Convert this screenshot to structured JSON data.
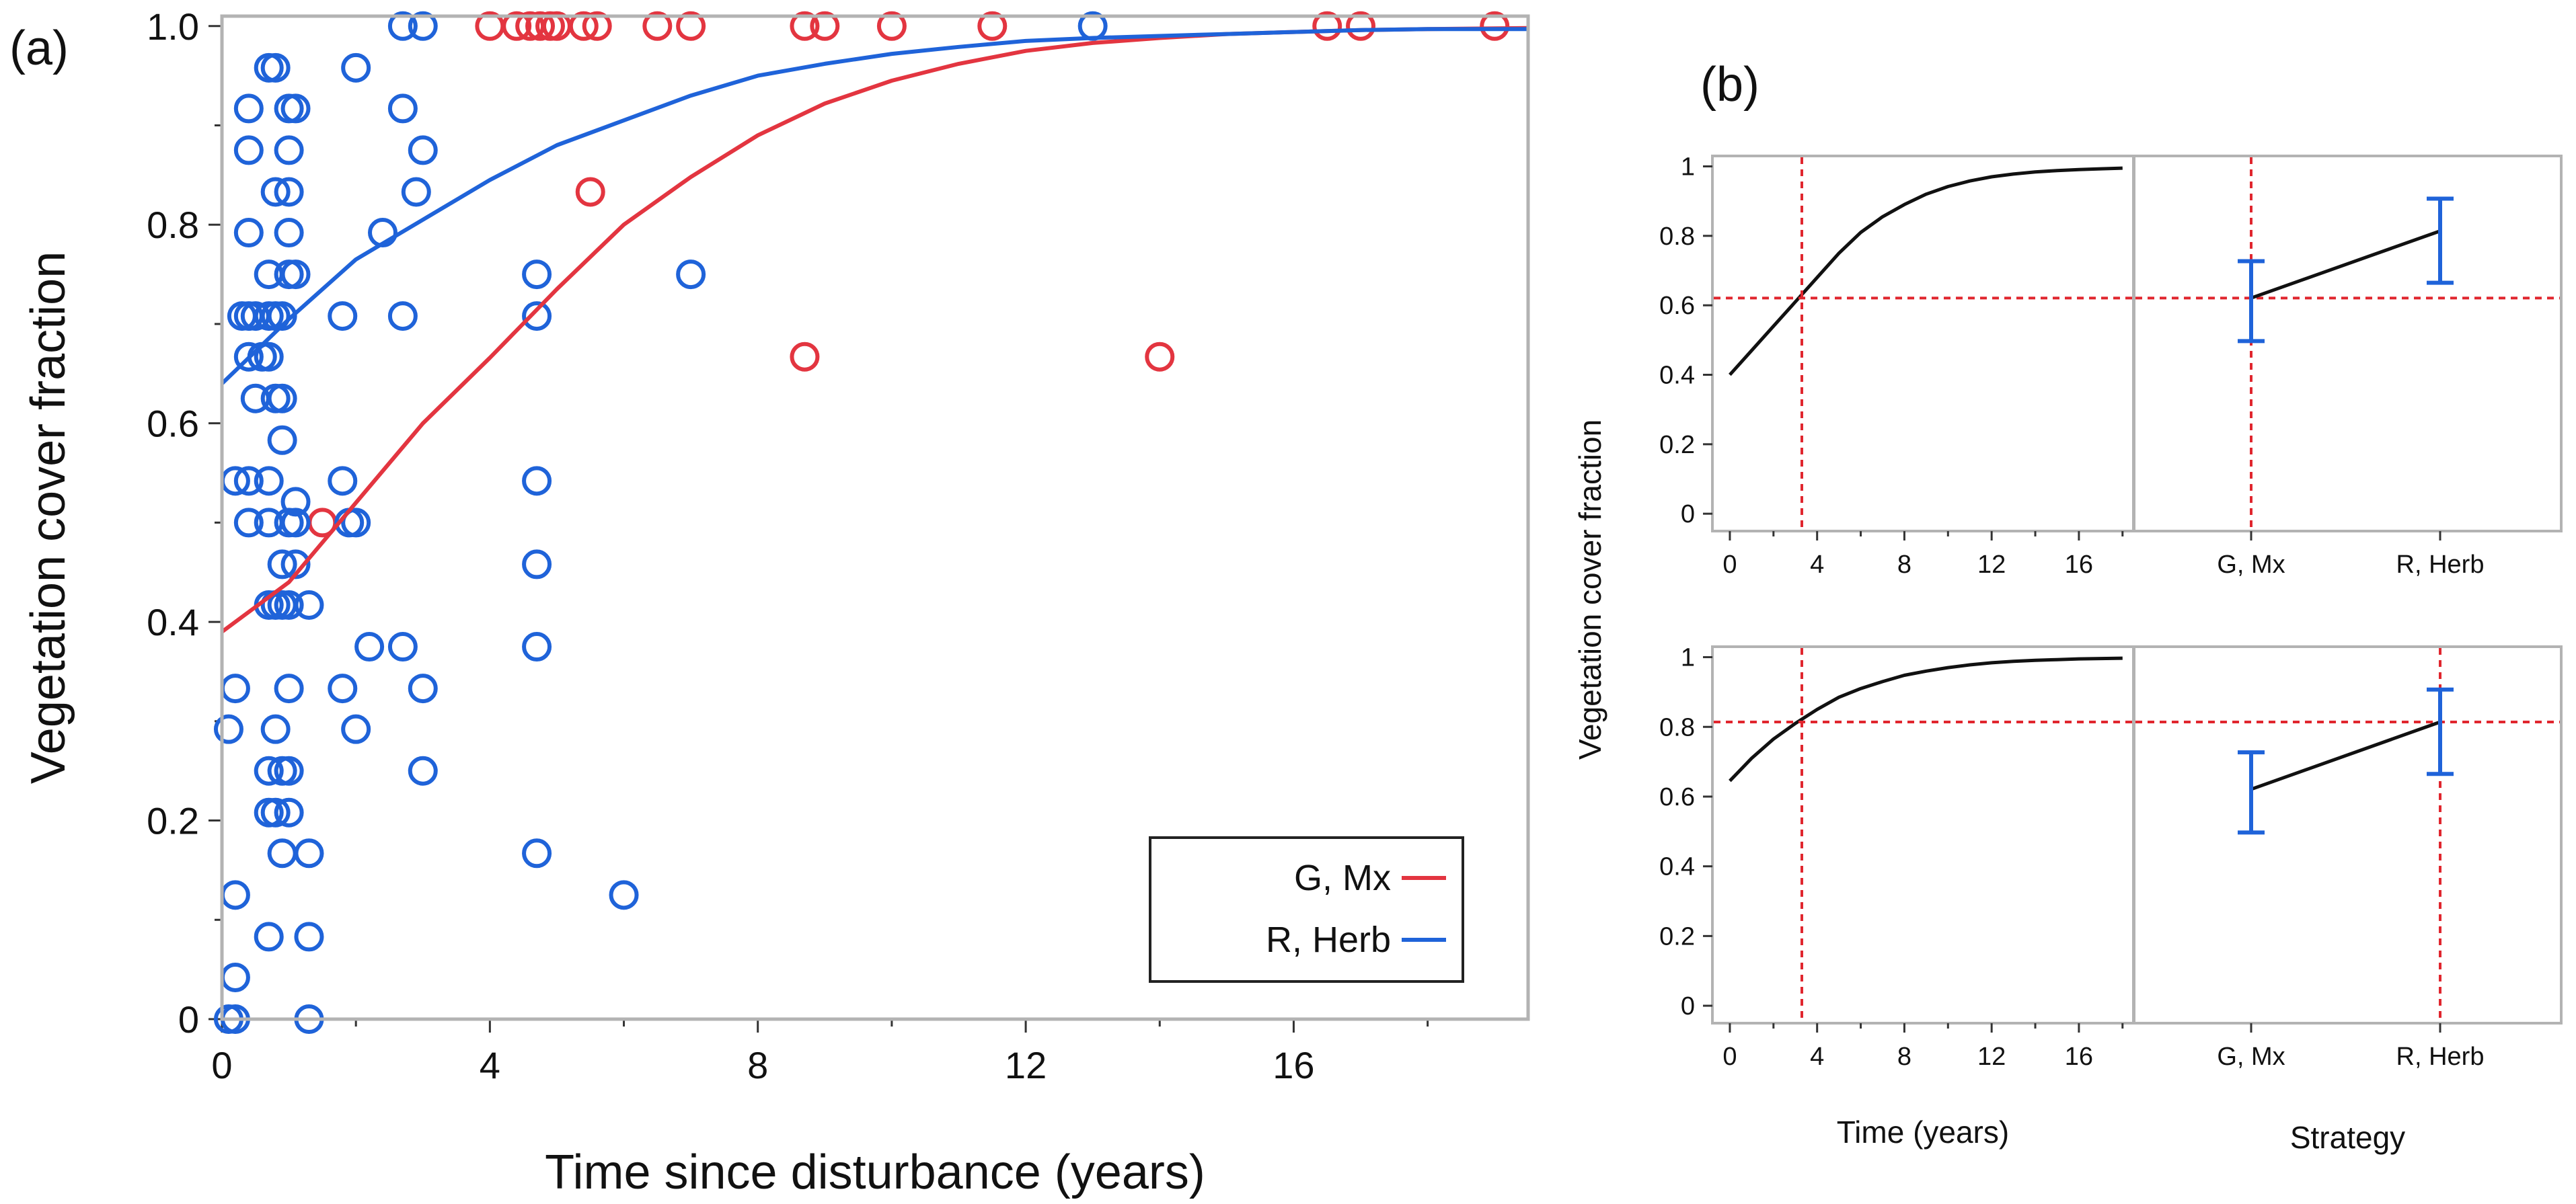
{
  "figure": {
    "panel_a_label": "(a)",
    "panel_b_label": "(b)",
    "colors": {
      "G, Mx": "#e33540",
      "R, Herb": "#1f63d9",
      "profile_line": "#111111",
      "crosshair": "#e0262e",
      "error_bar": "#1f63d9",
      "frame": "#b3b3b3"
    }
  },
  "chart_data": [
    {
      "id": "panel-a",
      "type": "scatter",
      "title": "",
      "xlabel": "Time since disturbance (years)",
      "ylabel": "Vegetation cover fraction",
      "xlim": [
        0,
        19.5
      ],
      "ylim": [
        0,
        1.01
      ],
      "xticks": [
        0,
        4,
        8,
        12,
        16
      ],
      "yticks": [
        0,
        0.2,
        0.4,
        0.6,
        0.8,
        1.0
      ],
      "xtick_labels": [
        "0",
        "4",
        "8",
        "12",
        "16"
      ],
      "ytick_labels": [
        "0",
        "0.2",
        "0.4",
        "0.6",
        "0.8",
        "1.0"
      ],
      "legend": {
        "position": "bottom-right",
        "entries": [
          "G, Mx",
          "R, Herb"
        ]
      },
      "series": [
        {
          "name": "G, Mx",
          "marker": "open-circle",
          "points": [
            [
              4.0,
              1.0
            ],
            [
              4.4,
              1.0
            ],
            [
              4.6,
              1.0
            ],
            [
              4.75,
              1.0
            ],
            [
              4.9,
              1.0
            ],
            [
              5.0,
              1.0
            ],
            [
              5.4,
              1.0
            ],
            [
              5.6,
              1.0
            ],
            [
              6.5,
              1.0
            ],
            [
              7.0,
              1.0
            ],
            [
              8.7,
              1.0
            ],
            [
              9.0,
              1.0
            ],
            [
              10.0,
              1.0
            ],
            [
              11.5,
              1.0
            ],
            [
              16.5,
              1.0
            ],
            [
              17.0,
              1.0
            ],
            [
              19.0,
              1.0
            ],
            [
              5.5,
              0.833
            ],
            [
              8.7,
              0.667
            ],
            [
              14.0,
              0.667
            ],
            [
              1.5,
              0.5
            ]
          ],
          "fit": [
            [
              0,
              0.39
            ],
            [
              1,
              0.44
            ],
            [
              2,
              0.52
            ],
            [
              3,
              0.6
            ],
            [
              4,
              0.666
            ],
            [
              5,
              0.735
            ],
            [
              6,
              0.8
            ],
            [
              7,
              0.848
            ],
            [
              8,
              0.89
            ],
            [
              9,
              0.922
            ],
            [
              10,
              0.945
            ],
            [
              11,
              0.962
            ],
            [
              12,
              0.975
            ],
            [
              13,
              0.983
            ],
            [
              14,
              0.988
            ],
            [
              15,
              0.992
            ],
            [
              16,
              0.994
            ],
            [
              17,
              0.996
            ],
            [
              18,
              0.997
            ],
            [
              19.5,
              0.998
            ]
          ]
        },
        {
          "name": "R, Herb",
          "marker": "open-circle",
          "points": [
            [
              2.7,
              1.0
            ],
            [
              3.0,
              1.0
            ],
            [
              13.0,
              1.0
            ],
            [
              0.7,
              0.958
            ],
            [
              0.8,
              0.958
            ],
            [
              2.0,
              0.958
            ],
            [
              0.4,
              0.917
            ],
            [
              1.0,
              0.917
            ],
            [
              1.1,
              0.917
            ],
            [
              2.7,
              0.917
            ],
            [
              0.4,
              0.875
            ],
            [
              1.0,
              0.875
            ],
            [
              3.0,
              0.875
            ],
            [
              0.8,
              0.833
            ],
            [
              1.0,
              0.833
            ],
            [
              2.9,
              0.833
            ],
            [
              0.4,
              0.792
            ],
            [
              1.0,
              0.792
            ],
            [
              2.4,
              0.792
            ],
            [
              0.7,
              0.75
            ],
            [
              1.0,
              0.75
            ],
            [
              1.1,
              0.75
            ],
            [
              4.7,
              0.75
            ],
            [
              7.0,
              0.75
            ],
            [
              0.3,
              0.708
            ],
            [
              0.4,
              0.708
            ],
            [
              0.5,
              0.708
            ],
            [
              0.7,
              0.708
            ],
            [
              0.8,
              0.708
            ],
            [
              0.9,
              0.708
            ],
            [
              1.8,
              0.708
            ],
            [
              2.7,
              0.708
            ],
            [
              4.7,
              0.708
            ],
            [
              0.4,
              0.667
            ],
            [
              0.6,
              0.667
            ],
            [
              0.7,
              0.667
            ],
            [
              0.5,
              0.625
            ],
            [
              0.8,
              0.625
            ],
            [
              0.9,
              0.625
            ],
            [
              0.9,
              0.583
            ],
            [
              0.2,
              0.542
            ],
            [
              0.4,
              0.542
            ],
            [
              0.7,
              0.542
            ],
            [
              1.8,
              0.542
            ],
            [
              4.7,
              0.542
            ],
            [
              1.1,
              0.521
            ],
            [
              0.4,
              0.5
            ],
            [
              0.7,
              0.5
            ],
            [
              1.0,
              0.5
            ],
            [
              1.1,
              0.5
            ],
            [
              1.9,
              0.5
            ],
            [
              2.0,
              0.5
            ],
            [
              1.1,
              0.458
            ],
            [
              0.9,
              0.458
            ],
            [
              0.7,
              0.417
            ],
            [
              0.8,
              0.417
            ],
            [
              0.9,
              0.417
            ],
            [
              1.0,
              0.417
            ],
            [
              1.3,
              0.417
            ],
            [
              4.7,
              0.458
            ],
            [
              2.2,
              0.375
            ],
            [
              2.7,
              0.375
            ],
            [
              4.7,
              0.375
            ],
            [
              0.2,
              0.333
            ],
            [
              1.0,
              0.333
            ],
            [
              1.8,
              0.333
            ],
            [
              3.0,
              0.333
            ],
            [
              0.1,
              0.292
            ],
            [
              0.8,
              0.292
            ],
            [
              2.0,
              0.292
            ],
            [
              0.7,
              0.25
            ],
            [
              0.9,
              0.25
            ],
            [
              1.0,
              0.25
            ],
            [
              3.0,
              0.25
            ],
            [
              0.7,
              0.208
            ],
            [
              0.8,
              0.208
            ],
            [
              1.0,
              0.208
            ],
            [
              0.9,
              0.167
            ],
            [
              1.3,
              0.167
            ],
            [
              4.7,
              0.167
            ],
            [
              0.2,
              0.125
            ],
            [
              6.0,
              0.125
            ],
            [
              0.7,
              0.083
            ],
            [
              1.3,
              0.083
            ],
            [
              0.2,
              0.042
            ],
            [
              0.1,
              0.0
            ],
            [
              0.2,
              0.0
            ],
            [
              1.3,
              0.0
            ]
          ],
          "fit": [
            [
              0,
              0.64
            ],
            [
              1,
              0.705
            ],
            [
              2,
              0.765
            ],
            [
              3,
              0.805
            ],
            [
              4,
              0.845
            ],
            [
              5,
              0.88
            ],
            [
              6,
              0.905
            ],
            [
              7,
              0.93
            ],
            [
              8,
              0.95
            ],
            [
              9,
              0.962
            ],
            [
              10,
              0.972
            ],
            [
              11,
              0.979
            ],
            [
              12,
              0.985
            ],
            [
              13,
              0.988
            ],
            [
              14,
              0.99
            ],
            [
              15,
              0.992
            ],
            [
              16,
              0.994
            ],
            [
              17,
              0.996
            ],
            [
              18,
              0.997
            ],
            [
              19.5,
              0.997
            ]
          ]
        }
      ]
    },
    {
      "id": "panel-b-top-time",
      "type": "line",
      "title": "",
      "xlabel": "",
      "ylabel": "Vegetation cover fraction",
      "xlim": [
        -0.8,
        18.5
      ],
      "ylim": [
        -0.05,
        1.03
      ],
      "xticks": [
        0,
        4,
        8,
        12,
        16
      ],
      "yticks": [
        0,
        0.2,
        0.4,
        0.6,
        0.8,
        1
      ],
      "xtick_labels": [
        "0",
        "4",
        "8",
        "12",
        "16"
      ],
      "ytick_labels": [
        "0",
        "0.2",
        "0.4",
        "0.6",
        "0.8",
        "1"
      ],
      "x": [
        0,
        1,
        2,
        3,
        4,
        5,
        6,
        7,
        8,
        9,
        10,
        11,
        12,
        13,
        14,
        15,
        16,
        17,
        18
      ],
      "values": [
        0.4,
        0.47,
        0.54,
        0.61,
        0.68,
        0.75,
        0.81,
        0.855,
        0.89,
        0.92,
        0.942,
        0.958,
        0.97,
        0.978,
        0.984,
        0.988,
        0.991,
        0.993,
        0.995
      ],
      "crosshair": {
        "x": 3.3,
        "y": 0.621
      }
    },
    {
      "id": "panel-b-top-strategy",
      "type": "line",
      "title": "",
      "xlabel": "",
      "ylabel": "",
      "ylim": [
        -0.05,
        1.03
      ],
      "categories": [
        "G, Mx",
        "R, Herb"
      ],
      "values": [
        0.621,
        0.814
      ],
      "error_low": [
        0.497,
        0.665
      ],
      "error_high": [
        0.727,
        0.907
      ],
      "crosshair": {
        "category": "G, Mx",
        "y": 0.621
      }
    },
    {
      "id": "panel-b-bottom-time",
      "type": "line",
      "title": "",
      "xlabel": "Time (years)",
      "ylabel": "Vegetation cover fraction",
      "xlim": [
        -0.8,
        18.5
      ],
      "ylim": [
        -0.05,
        1.03
      ],
      "xticks": [
        0,
        4,
        8,
        12,
        16
      ],
      "yticks": [
        0,
        0.2,
        0.4,
        0.6,
        0.8,
        1
      ],
      "xtick_labels": [
        "0",
        "4",
        "8",
        "12",
        "16"
      ],
      "ytick_labels": [
        "0",
        "0.2",
        "0.4",
        "0.6",
        "0.8",
        "1"
      ],
      "x": [
        0,
        1,
        2,
        3,
        4,
        5,
        6,
        7,
        8,
        9,
        10,
        11,
        12,
        13,
        14,
        15,
        16,
        17,
        18
      ],
      "values": [
        0.645,
        0.71,
        0.765,
        0.81,
        0.85,
        0.885,
        0.91,
        0.93,
        0.948,
        0.96,
        0.97,
        0.978,
        0.984,
        0.988,
        0.991,
        0.993,
        0.995,
        0.996,
        0.997
      ],
      "crosshair": {
        "x": 3.3,
        "y": 0.814
      }
    },
    {
      "id": "panel-b-bottom-strategy",
      "type": "line",
      "title": "",
      "xlabel": "Strategy",
      "ylabel": "",
      "ylim": [
        -0.05,
        1.03
      ],
      "categories": [
        "G, Mx",
        "R, Herb"
      ],
      "values": [
        0.621,
        0.814
      ],
      "error_low": [
        0.497,
        0.665
      ],
      "error_high": [
        0.727,
        0.907
      ],
      "crosshair": {
        "category": "R, Herb",
        "y": 0.814
      }
    }
  ]
}
